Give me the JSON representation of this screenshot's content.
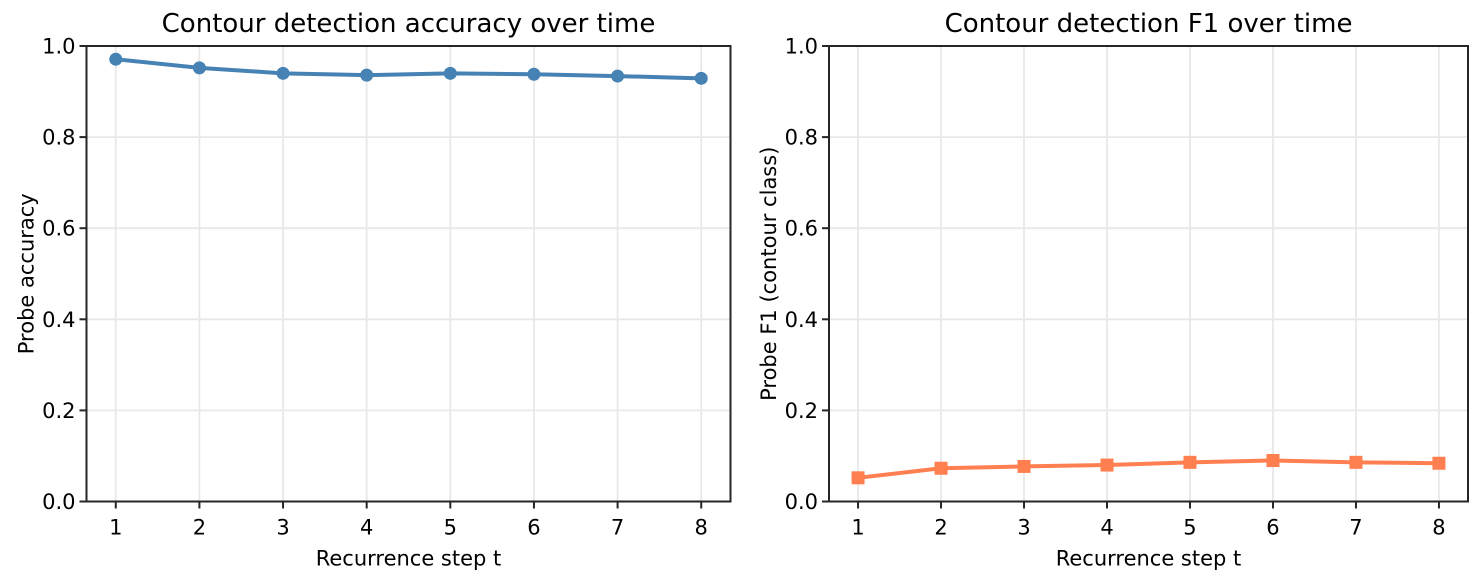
{
  "figure": {
    "background": "#ffffff"
  },
  "style": {
    "grid_color": "#e8e8e8",
    "spine_color": "#262626",
    "text_color": "#000000",
    "accuracy_series_color": "#4682B4",
    "f1_series_color": "#FF7F50"
  },
  "chart_data": [
    {
      "type": "line",
      "title": "Contour detection accuracy over time",
      "xlabel": "Recurrence step t",
      "ylabel": "Probe accuracy",
      "x": [
        1,
        2,
        3,
        4,
        5,
        6,
        7,
        8
      ],
      "series": [
        {
          "name": "probe-accuracy",
          "values": [
            0.971,
            0.952,
            0.94,
            0.936,
            0.94,
            0.938,
            0.934,
            0.929
          ],
          "color": "#4682B4",
          "marker": "circle"
        }
      ],
      "xlim": [
        0.65,
        8.35
      ],
      "ylim": [
        0.0,
        1.0
      ],
      "xticks": [
        1,
        2,
        3,
        4,
        5,
        6,
        7,
        8
      ],
      "yticks": [
        0.0,
        0.2,
        0.4,
        0.6,
        0.8,
        1.0
      ],
      "grid": true,
      "legend": "none"
    },
    {
      "type": "line",
      "title": "Contour detection F1 over time",
      "xlabel": "Recurrence step t",
      "ylabel": "Probe F1 (contour class)",
      "x": [
        1,
        2,
        3,
        4,
        5,
        6,
        7,
        8
      ],
      "series": [
        {
          "name": "probe-f1-contour-class",
          "values": [
            0.052,
            0.073,
            0.077,
            0.08,
            0.086,
            0.09,
            0.086,
            0.084
          ],
          "color": "#FF7F50",
          "marker": "square"
        }
      ],
      "xlim": [
        0.65,
        8.35
      ],
      "ylim": [
        0.0,
        1.0
      ],
      "xticks": [
        1,
        2,
        3,
        4,
        5,
        6,
        7,
        8
      ],
      "yticks": [
        0.0,
        0.2,
        0.4,
        0.6,
        0.8,
        1.0
      ],
      "grid": true,
      "legend": "none"
    }
  ]
}
